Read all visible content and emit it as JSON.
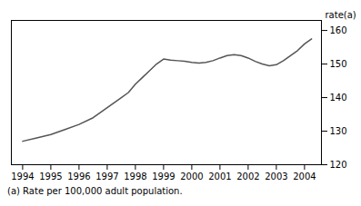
{
  "chart_data": {
    "type": "line",
    "x": [
      1994,
      1994.5,
      1995,
      1995.5,
      1996,
      1996.5,
      1997,
      1997.25,
      1997.5,
      1997.75,
      1998,
      1998.25,
      1998.5,
      1998.75,
      1999,
      1999.25,
      1999.5,
      1999.75,
      2000,
      2000.25,
      2000.5,
      2000.75,
      2001,
      2001.25,
      2001.5,
      2001.75,
      2002,
      2002.25,
      2002.5,
      2002.75,
      2003,
      2003.25,
      2003.5,
      2003.75,
      2004,
      2004.25
    ],
    "values": [
      127.0,
      128.0,
      129.0,
      130.5,
      132.0,
      134.0,
      137.0,
      138.5,
      140.0,
      141.5,
      144.0,
      146.0,
      148.0,
      150.0,
      151.5,
      151.2,
      151.0,
      150.8,
      150.5,
      150.3,
      150.5,
      151.0,
      151.8,
      152.5,
      152.8,
      152.5,
      151.8,
      150.8,
      150.0,
      149.5,
      149.8,
      151.0,
      152.5,
      154.0,
      156.0,
      157.5
    ],
    "ylabel": "rate(a)",
    "annotations": [
      "(a) Rate per 100,000 adult population."
    ],
    "color": "#555555",
    "xlim": [
      1993.6,
      2004.6
    ],
    "xticks": [
      1994,
      1995,
      1996,
      1997,
      1998,
      1999,
      2000,
      2001,
      2002,
      2003,
      2004
    ],
    "ylim": [
      120,
      163
    ],
    "yticks": [
      120,
      130,
      140,
      150,
      160
    ],
    "grid": false
  }
}
